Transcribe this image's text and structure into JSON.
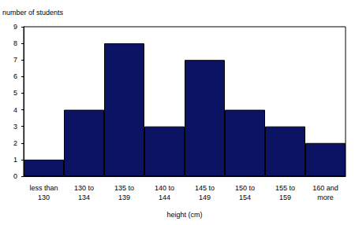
{
  "chart_data": {
    "type": "bar",
    "x_label": "height (cm)",
    "y_label": "number of students",
    "categories": [
      "less than 130",
      "130 to 134",
      "135 to 139",
      "140 to 144",
      "145 to 149",
      "150 to 154",
      "155 to 159",
      "160 and more"
    ],
    "values": [
      1,
      4,
      8,
      3,
      7,
      4,
      3,
      2
    ],
    "color": "#0b1464",
    "ylim": [
      0,
      9
    ],
    "yticks": [
      0,
      1,
      2,
      3,
      4,
      5,
      6,
      7,
      8,
      9
    ],
    "grid": false
  }
}
